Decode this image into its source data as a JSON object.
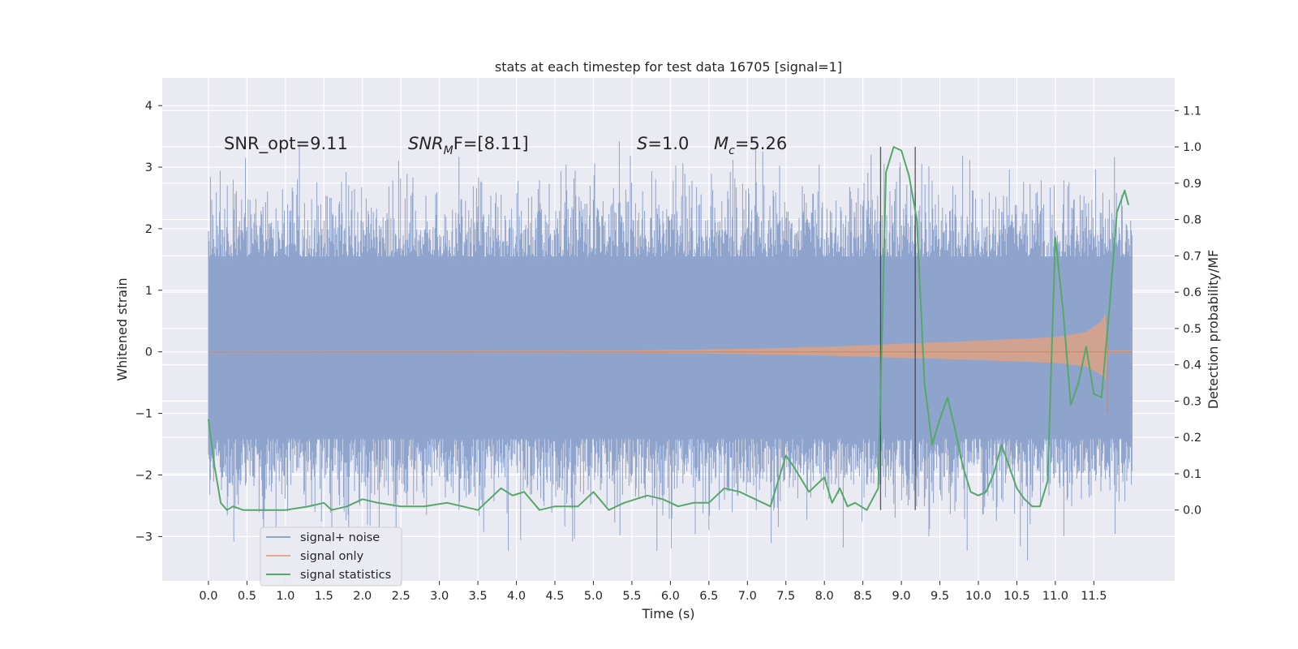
{
  "chart_data": {
    "type": "line",
    "title": "stats at each timestep for test data 16705 [signal=1]",
    "xlabel": "Time (s)",
    "ylabel_left": "Whitened strain",
    "ylabel_right": "Detection probability/MF",
    "xlim": [
      -0.6,
      12.55
    ],
    "ylim_left": [
      -3.72,
      4.45
    ],
    "ylim_right": [
      -0.195,
      1.19
    ],
    "xticks": [
      0.0,
      0.5,
      1.0,
      1.5,
      2.0,
      2.5,
      3.0,
      3.5,
      4.0,
      4.5,
      5.0,
      5.5,
      6.0,
      6.5,
      7.0,
      7.5,
      8.0,
      8.5,
      9.0,
      9.5,
      10.0,
      10.5,
      11.0,
      11.5
    ],
    "xtick_labels": [
      "0.0",
      "0.5",
      "1.0",
      "1.5",
      "2.0",
      "2.5",
      "3.0",
      "3.5",
      "4.0",
      "4.5",
      "5.0",
      "5.5",
      "6.0",
      "6.5",
      "7.0",
      "7.5",
      "8.0",
      "8.5",
      "9.0",
      "9.5",
      "10.0",
      "10.5",
      "11.0",
      "11.5"
    ],
    "yticks_left": [
      -3,
      -2,
      -1,
      0,
      1,
      2,
      3,
      4
    ],
    "ytick_labels_left": [
      "−3",
      "−2",
      "−1",
      "0",
      "1",
      "2",
      "3",
      "4"
    ],
    "yticks_right": [
      0.0,
      0.1,
      0.2,
      0.3,
      0.4,
      0.5,
      0.6,
      0.7,
      0.8,
      0.9,
      1.0,
      1.1
    ],
    "ytick_labels_right": [
      "0.0",
      "0.1",
      "0.2",
      "0.3",
      "0.4",
      "0.5",
      "0.6",
      "0.7",
      "0.8",
      "0.9",
      "1.0",
      "1.1"
    ],
    "grid": true,
    "legend_position": "lower-left",
    "annotations": {
      "snr_opt": "SNR_opt=9.11",
      "snr_mf_main": "SNR",
      "snr_mf_sub": "M",
      "snr_mf_rest": "F=[8.11]",
      "s_italic": "S",
      "s_rest": "=1.0",
      "mc_italic": "M",
      "mc_sub": "c",
      "mc_rest": "=5.26"
    },
    "vertical_lines": [
      8.73,
      9.18
    ],
    "series": [
      {
        "name": "signal+ noise",
        "axis": "left",
        "color": "#8fa4cc",
        "x_range": [
          0.0,
          12.0
        ],
        "envelope_bulk": [
          -1.42,
          1.55
        ],
        "spike_range": [
          -3.4,
          4.1
        ]
      },
      {
        "name": "signal only",
        "axis": "left",
        "color": "#dd8452",
        "envelope": {
          "x": [
            0.0,
            5.5,
            7.0,
            8.0,
            9.0,
            10.0,
            11.0,
            11.4,
            11.6,
            11.65,
            11.68,
            12.0
          ],
          "amp": [
            0.01,
            0.02,
            0.05,
            0.08,
            0.13,
            0.18,
            0.24,
            0.32,
            0.5,
            0.62,
            0.02,
            0.02
          ]
        }
      },
      {
        "name": "signal statistics",
        "axis": "right",
        "color": "#55a868",
        "x": [
          0.0,
          0.08,
          0.16,
          0.24,
          0.32,
          0.45,
          0.6,
          0.75,
          1.0,
          1.3,
          1.5,
          1.6,
          1.8,
          2.0,
          2.2,
          2.5,
          2.8,
          3.1,
          3.3,
          3.5,
          3.8,
          3.95,
          4.1,
          4.3,
          4.5,
          4.8,
          5.0,
          5.2,
          5.4,
          5.7,
          5.9,
          6.1,
          6.3,
          6.5,
          6.7,
          6.9,
          7.1,
          7.3,
          7.5,
          7.6,
          7.8,
          8.0,
          8.1,
          8.2,
          8.3,
          8.4,
          8.55,
          8.7,
          8.8,
          8.9,
          9.0,
          9.1,
          9.2,
          9.3,
          9.4,
          9.5,
          9.6,
          9.7,
          9.8,
          9.9,
          10.0,
          10.1,
          10.2,
          10.3,
          10.4,
          10.5,
          10.6,
          10.7,
          10.8,
          10.9,
          11.0,
          11.1,
          11.2,
          11.3,
          11.4,
          11.5,
          11.6,
          11.7,
          11.8,
          11.9,
          11.95
        ],
        "y": [
          0.25,
          0.12,
          0.02,
          0.0,
          0.01,
          0.0,
          0.0,
          0.0,
          0.0,
          0.01,
          0.02,
          0.0,
          0.01,
          0.03,
          0.02,
          0.01,
          0.01,
          0.02,
          0.01,
          0.0,
          0.06,
          0.04,
          0.05,
          0.0,
          0.01,
          0.01,
          0.05,
          0.0,
          0.02,
          0.04,
          0.03,
          0.01,
          0.02,
          0.02,
          0.06,
          0.05,
          0.03,
          0.01,
          0.15,
          0.12,
          0.05,
          0.09,
          0.02,
          0.06,
          0.01,
          0.02,
          0.0,
          0.06,
          0.93,
          1.0,
          0.99,
          0.92,
          0.8,
          0.35,
          0.18,
          0.25,
          0.31,
          0.22,
          0.12,
          0.05,
          0.04,
          0.05,
          0.1,
          0.18,
          0.12,
          0.06,
          0.03,
          0.01,
          0.01,
          0.08,
          0.75,
          0.55,
          0.29,
          0.35,
          0.45,
          0.32,
          0.31,
          0.55,
          0.82,
          0.88,
          0.84
        ]
      }
    ]
  }
}
